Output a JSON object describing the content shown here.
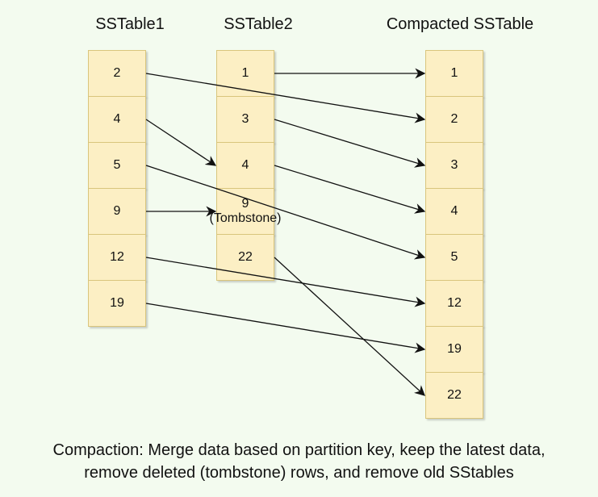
{
  "titles": {
    "sstable1": "SSTable1",
    "sstable2": "SSTable2",
    "compacted": "Compacted SSTable"
  },
  "sstable1": [
    "2",
    "4",
    "5",
    "9",
    "12",
    "19"
  ],
  "sstable2": [
    "1",
    "3",
    "4",
    "9\n(Tombstone)",
    "22"
  ],
  "compacted": [
    "1",
    "2",
    "3",
    "4",
    "5",
    "12",
    "19",
    "22"
  ],
  "caption": {
    "line1": "Compaction: Merge data based on partition key, keep the latest data,",
    "line2": "remove deleted (tombstone) rows, and remove old SStables"
  },
  "colors": {
    "background": "#f3fbef",
    "cell_fill": "#fcefc4",
    "cell_border": "#d9c57c",
    "arrow": "#111111"
  },
  "edges": [
    {
      "from": "sstable1:2",
      "to": "compacted:2"
    },
    {
      "from": "sstable1:4",
      "to": "sstable2:4"
    },
    {
      "from": "sstable1:5",
      "to": "compacted:5"
    },
    {
      "from": "sstable1:9",
      "to": "sstable2:9"
    },
    {
      "from": "sstable1:12",
      "to": "compacted:12"
    },
    {
      "from": "sstable1:19",
      "to": "compacted:19"
    },
    {
      "from": "sstable2:1",
      "to": "compacted:1"
    },
    {
      "from": "sstable2:3",
      "to": "compacted:3"
    },
    {
      "from": "sstable2:4",
      "to": "compacted:4"
    },
    {
      "from": "sstable2:22",
      "to": "compacted:22"
    }
  ]
}
